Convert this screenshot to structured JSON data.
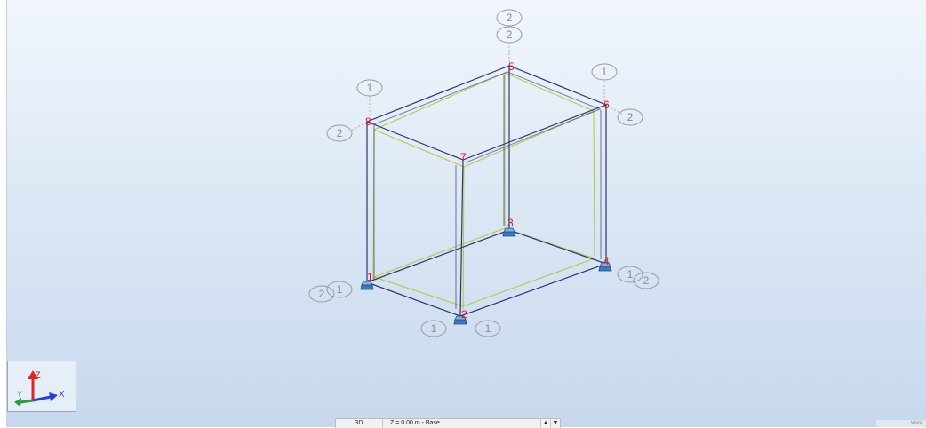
{
  "nodes": [
    {
      "id": "node-1",
      "label": "1"
    },
    {
      "id": "node-2",
      "label": "2"
    },
    {
      "id": "node-3",
      "label": "3"
    },
    {
      "id": "node-4",
      "label": "4"
    },
    {
      "id": "node-5",
      "label": "5"
    },
    {
      "id": "node-6",
      "label": "6"
    },
    {
      "id": "node-7",
      "label": "7"
    },
    {
      "id": "node-8",
      "label": "8"
    }
  ],
  "section_tags": {
    "top_a": "2",
    "top_b": "2",
    "node6_up": "1",
    "node6_right": "2",
    "node8_up": "1",
    "node8_left": "2",
    "node1_a": "2",
    "node1_b": "1",
    "node2_left": "1",
    "node2_right": "1",
    "node4_a": "1",
    "node4_b": "2"
  },
  "axes": {
    "z": "Z",
    "y": "Y",
    "x": "X"
  },
  "status_bar": {
    "view": "3D",
    "level": "Z = 0.00 m - Base",
    "up": "▲",
    "down": "▼"
  },
  "corner_text": "Vista",
  "colors": {
    "node_label": "#e8121b",
    "frame_edge": "#2a3770",
    "member_inner": "#b9c53b",
    "support": "#3a78c2",
    "axis_z": "#e0241f",
    "axis_y": "#2a9a3a",
    "axis_x": "#2b3fd6"
  }
}
